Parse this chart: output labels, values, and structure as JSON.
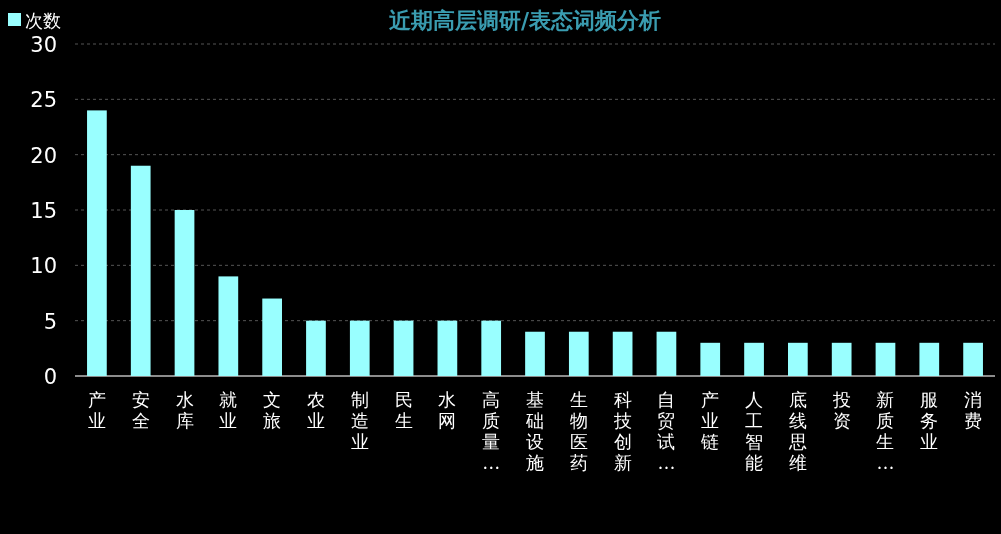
{
  "chart_data": {
    "type": "bar",
    "title": "近期高层调研/表态词频分析",
    "categories": [
      "产业",
      "安全",
      "水库",
      "就业",
      "文旅",
      "农业",
      "制造业",
      "民生",
      "水网",
      "高质量…",
      "基础设施",
      "生物医药",
      "科技创新",
      "自贸试…",
      "产业链",
      "人工智能",
      "底线思维",
      "投资",
      "新质生…",
      "服务业",
      "消费"
    ],
    "series": [
      {
        "name": "次数",
        "color": "#99ffff",
        "values": [
          24,
          19,
          15,
          9,
          7,
          5,
          5,
          5,
          5,
          5,
          4,
          4,
          4,
          4,
          3,
          3,
          3,
          3,
          3,
          3,
          3
        ]
      }
    ],
    "ylim": [
      0,
      30
    ],
    "yticks": [
      0,
      5,
      10,
      15,
      20,
      25,
      30
    ],
    "grid": "y",
    "legend": "top left"
  }
}
